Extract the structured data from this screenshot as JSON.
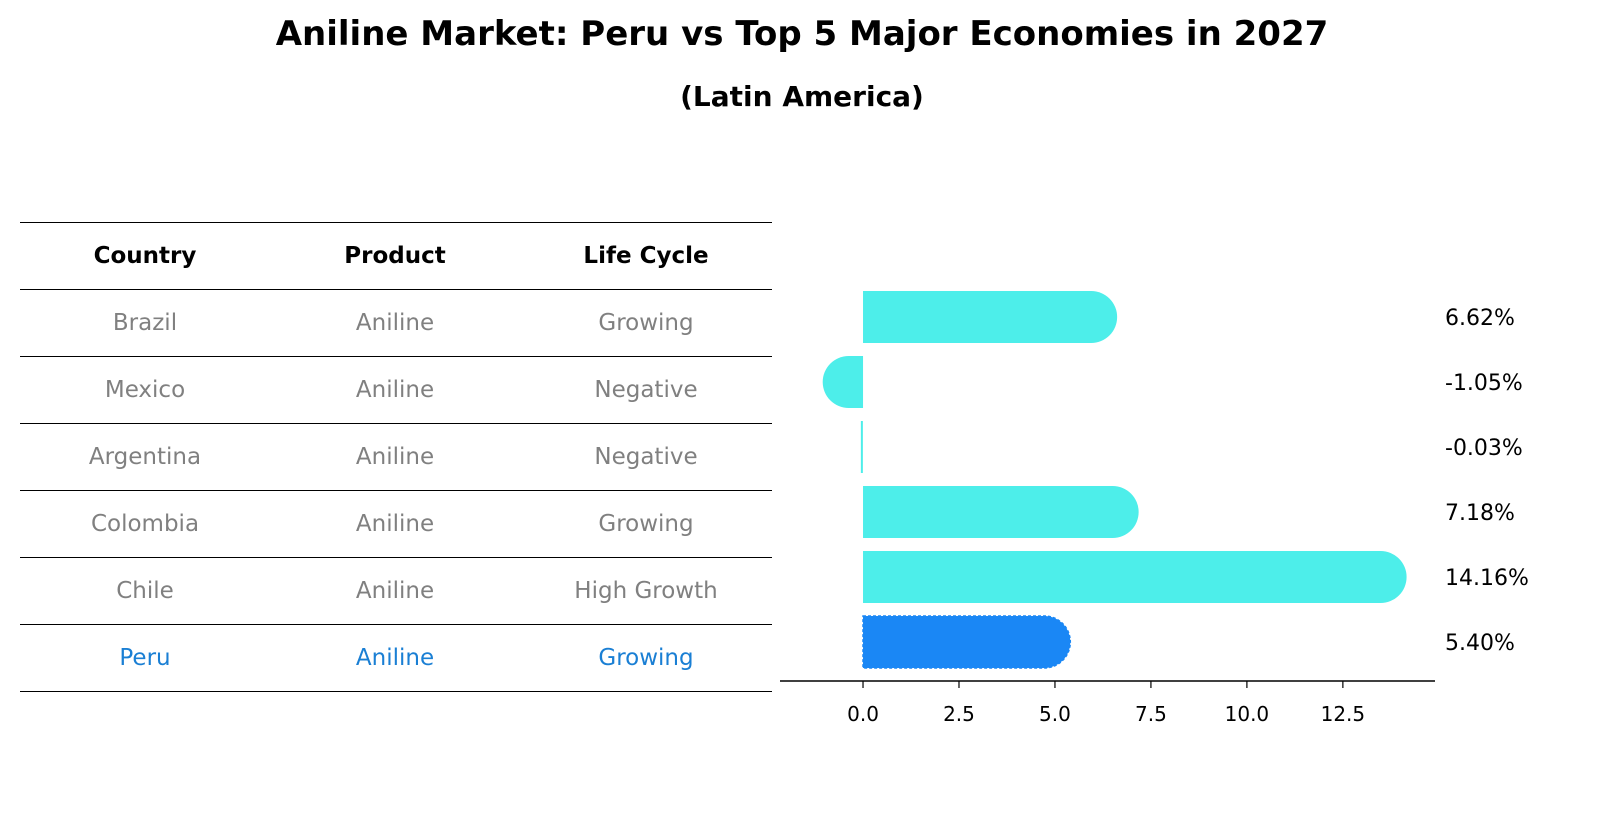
{
  "title": "Aniline Market: Peru vs Top 5 Major Economies in 2027",
  "subtitle": "(Latin America)",
  "table": {
    "headers": [
      "Country",
      "Product",
      "Life Cycle"
    ],
    "rows": [
      [
        "Brazil",
        "Aniline",
        "Growing"
      ],
      [
        "Mexico",
        "Aniline",
        "Negative"
      ],
      [
        "Argentina",
        "Aniline",
        "Negative"
      ],
      [
        "Colombia",
        "Aniline",
        "Growing"
      ],
      [
        "Chile",
        "Aniline",
        "High Growth"
      ],
      [
        "Peru",
        "Aniline",
        "Growing"
      ]
    ],
    "highlight_row": 5,
    "highlight_color": "#1a7fd4"
  },
  "chart_data": {
    "type": "bar",
    "orientation": "horizontal",
    "categories": [
      "Brazil",
      "Mexico",
      "Argentina",
      "Colombia",
      "Chile",
      "Peru"
    ],
    "values": [
      6.62,
      -1.05,
      -0.03,
      7.18,
      14.16,
      5.4
    ],
    "value_labels": [
      "6.62%",
      "-1.05%",
      "-0.03%",
      "7.18%",
      "14.16%",
      "5.40%"
    ],
    "xlim": [
      -1.85,
      14.9
    ],
    "xticks": [
      "0.0",
      "2.5",
      "5.0",
      "7.5",
      "10.0",
      "12.5"
    ],
    "xtick_values": [
      0,
      2.5,
      5,
      7.5,
      10,
      12.5
    ],
    "bar_color": "#4deeea",
    "highlight_color": "#1a87f5",
    "highlight_index": 5,
    "grid": false
  }
}
